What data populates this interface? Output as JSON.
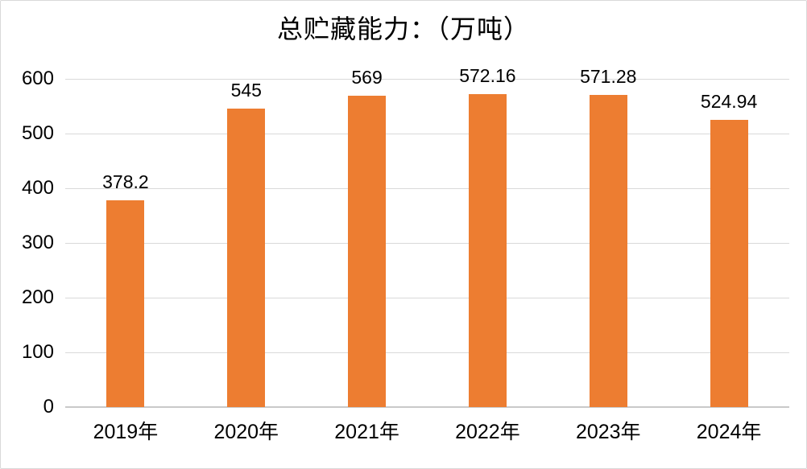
{
  "chart_data": {
    "type": "bar",
    "title": "总贮藏能力：（万吨）",
    "categories": [
      "2019年",
      "2020年",
      "2021年",
      "2022年",
      "2023年",
      "2024年"
    ],
    "values": [
      378.2,
      545,
      569,
      572.16,
      571.28,
      524.94
    ],
    "value_labels": [
      "378.2",
      "545",
      "569",
      "572.16",
      "571.28",
      "524.94"
    ],
    "xlabel": "",
    "ylabel": "",
    "ylim": [
      0,
      600
    ],
    "ytick_step": 100,
    "ytick_labels": [
      "0",
      "100",
      "200",
      "300",
      "400",
      "500",
      "600"
    ],
    "grid": true,
    "legend_position": "none",
    "colors": {
      "bar": "#ED7D31",
      "gridline": "#D9D9D9",
      "axis_line": "#C9C9C9",
      "text": "#000000",
      "frame_border": "#D9D9D9",
      "background": "#FFFFFF"
    }
  }
}
